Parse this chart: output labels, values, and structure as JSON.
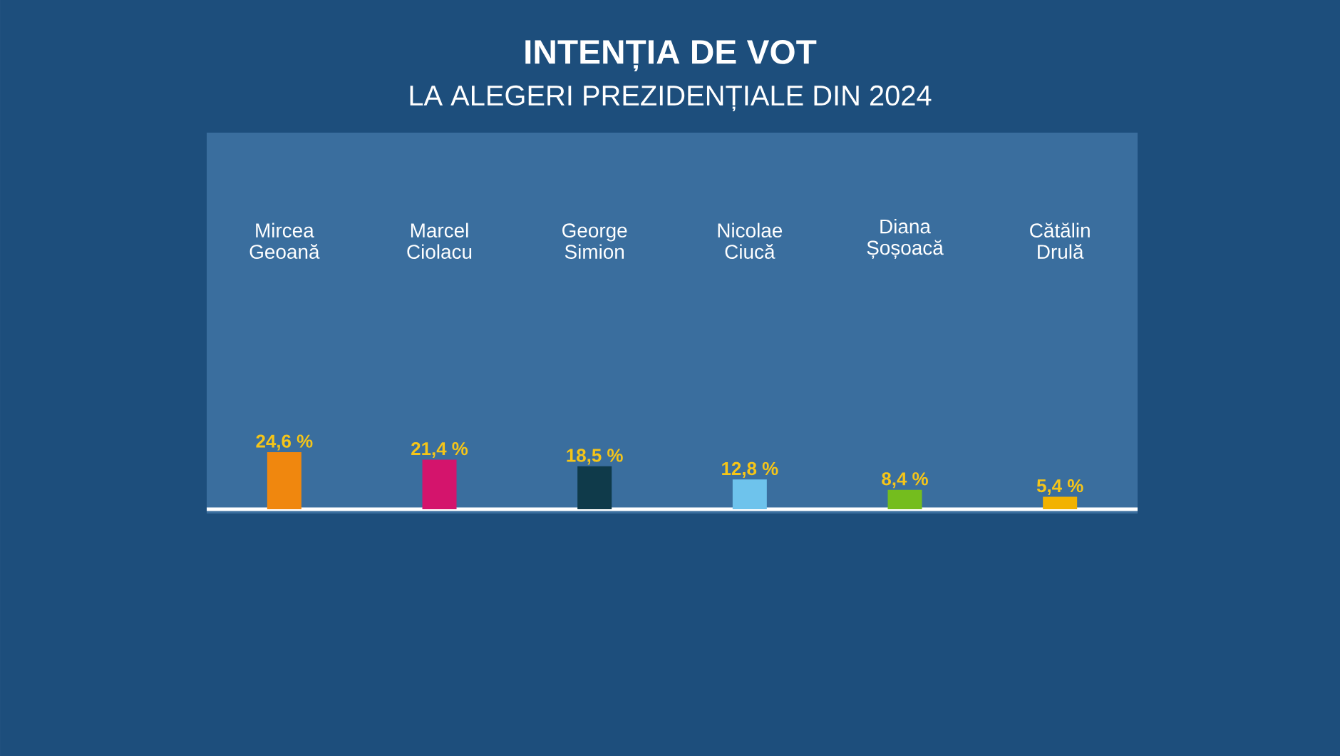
{
  "chart_data": {
    "type": "bar",
    "title": "INTENȚIA DE VOT",
    "subtitle": "LA ALEGERI PREZIDENȚIALE DIN 2024",
    "categories": [
      "Mircea Geoană",
      "Marcel Ciolacu",
      "George Simion",
      "Nicolae Ciucă",
      "Diana Șoșoacă",
      "Cătălin Drulă"
    ],
    "values": [
      24.6,
      21.4,
      18.5,
      12.8,
      8.4,
      5.4
    ],
    "colors": [
      "#f0870e",
      "#d4146c",
      "#0f3a4a",
      "#6ec3ec",
      "#74bd1e",
      "#f2b200"
    ],
    "value_labels": [
      "24,6 %",
      "21,4 %",
      "18,5 %",
      "12,8 %",
      "8,4 %",
      "5,4 %"
    ]
  }
}
